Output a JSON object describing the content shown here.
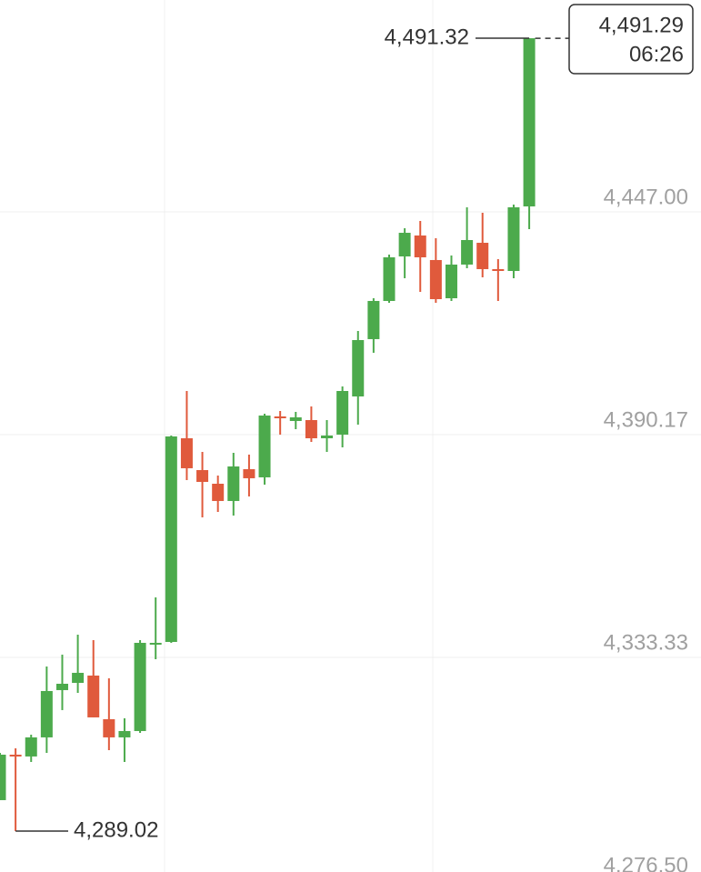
{
  "chart_data": {
    "type": "candlestick",
    "up_color": "#4caa4c",
    "down_color": "#e05a3c",
    "grid": true,
    "ylim": [
      4276.5,
      4501.05
    ],
    "yticks": [
      {
        "value": 4447.0,
        "label": "4,447.00"
      },
      {
        "value": 4390.17,
        "label": "4,390.17"
      },
      {
        "value": 4333.33,
        "label": "4,333.33"
      },
      {
        "value": 4276.5,
        "label": "4,276.50"
      }
    ],
    "open": [
      4296.92,
      4308.52,
      4308.06,
      4312.93,
      4324.99,
      4326.84,
      4328.7,
      4317.57,
      4312.93,
      4314.55,
      4336.59,
      4337.28,
      4389.24,
      4381.12,
      4377.64,
      4373.24,
      4381.35,
      4379.27,
      4394.81,
      4393.65,
      4393.88,
      4389.24,
      4390.17,
      4399.91,
      4414.53,
      4424.27,
      4435.63,
      4440.97,
      4434.71,
      4424.96,
      4433.55,
      4439.11,
      4432.39,
      4431.92,
      4448.39
    ],
    "high": [
      4308.98,
      4310.14,
      4313.62,
      4331.02,
      4334.04,
      4339.14,
      4337.75,
      4328.0,
      4317.8,
      4337.75,
      4348.65,
      4389.94,
      4401.3,
      4385.76,
      4379.73,
      4385.53,
      4385.07,
      4395.51,
      4396.2,
      4395.97,
      4397.36,
      4393.88,
      4402.46,
      4416.61,
      4424.96,
      4436.1,
      4442.82,
      4444.68,
      4440.27,
      4435.87,
      4448.16,
      4446.77,
      4434.94,
      4448.86,
      4491.32
    ],
    "low": [
      4296.92,
      4289.02,
      4306.66,
      4308.98,
      4319.89,
      4324.29,
      4318.03,
      4309.68,
      4306.66,
      4314.09,
      4332.88,
      4337.05,
      4378.57,
      4369.06,
      4370.45,
      4369.53,
      4374.4,
      4377.41,
      4390.17,
      4391.56,
      4388.31,
      4385.76,
      4386.92,
      4392.72,
      4411.05,
      4423.8,
      4430.07,
      4426.59,
      4423.8,
      4424.27,
      4432.62,
      4430.3,
      4424.27,
      4430.07,
      4442.59
    ],
    "close": [
      4308.52,
      4308.29,
      4312.93,
      4324.76,
      4326.61,
      4329.4,
      4318.03,
      4312.93,
      4314.55,
      4337.05,
      4337.05,
      4389.71,
      4381.59,
      4378.11,
      4373.24,
      4382.05,
      4379.04,
      4395.04,
      4394.34,
      4394.58,
      4389.24,
      4389.94,
      4401.3,
      4414.29,
      4424.27,
      4435.4,
      4441.66,
      4435.4,
      4424.73,
      4433.55,
      4439.81,
      4432.39,
      4431.92,
      4448.16,
      4491.29
    ],
    "max_label": {
      "value": 4491.32,
      "label": "4,491.32"
    },
    "min_label": {
      "value": 4289.02,
      "label": "4,289.02"
    },
    "last_price": {
      "value": 4491.29,
      "label": "4,491.29"
    },
    "last_time": "06:26"
  }
}
